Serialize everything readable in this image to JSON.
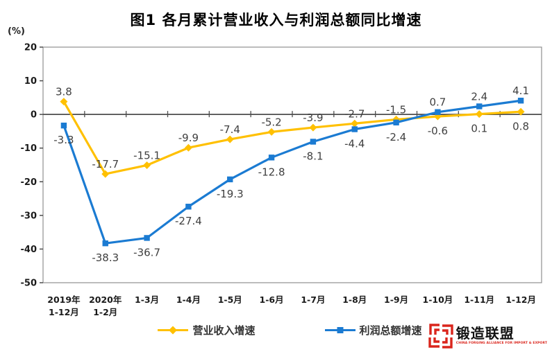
{
  "chart": {
    "title": "图1  各月累计营业收入与利润总额同比增速",
    "unit_label": "(%)"
  },
  "chart_data": {
    "type": "line",
    "title": "图1 各月累计营业收入与利润总额同比增速",
    "ylabel": "(%)",
    "xlabel": "",
    "categories": [
      "2019年1-12月",
      "2020年1-2月",
      "1-3月",
      "1-4月",
      "1-5月",
      "1-6月",
      "1-7月",
      "1-8月",
      "1-9月",
      "1-10月",
      "1-11月",
      "1-12月"
    ],
    "category_labels": [
      [
        "2019年",
        "1-12月"
      ],
      [
        "2020年",
        "1-2月"
      ],
      [
        "1-3月"
      ],
      [
        "1-4月"
      ],
      [
        "1-5月"
      ],
      [
        "1-6月"
      ],
      [
        "1-7月"
      ],
      [
        "1-8月"
      ],
      [
        "1-9月"
      ],
      [
        "1-10月"
      ],
      [
        "1-11月"
      ],
      [
        "1-12月"
      ]
    ],
    "series": [
      {
        "name": "营业收入增速",
        "color": "#FFC000",
        "marker": "diamond",
        "values": [
          3.8,
          -17.7,
          -15.1,
          -9.9,
          -7.4,
          -5.2,
          -3.9,
          -2.7,
          -1.5,
          -0.6,
          0.1,
          0.8
        ],
        "label_pos": [
          "above",
          "above",
          "above",
          "above",
          "above",
          "above",
          "above",
          "above",
          "above",
          "below",
          "below",
          "below"
        ]
      },
      {
        "name": "利润总额增速",
        "color": "#1B7BD2",
        "marker": "square",
        "values": [
          -3.3,
          -38.3,
          -36.7,
          -27.4,
          -19.3,
          -12.8,
          -8.1,
          -4.4,
          -2.4,
          0.7,
          2.4,
          4.1
        ],
        "label_pos": [
          "below",
          "below",
          "below",
          "below",
          "below",
          "below",
          "below",
          "below",
          "below",
          "above",
          "above",
          "above"
        ]
      }
    ],
    "ylim": [
      -50,
      20
    ],
    "yticks": [
      20,
      10,
      0,
      -10,
      -20,
      -30,
      -40,
      -50
    ],
    "grid": false,
    "legend_position": "bottom",
    "colors": {
      "axis": "#4d4d4d",
      "frame": "#8f8f8f",
      "data_label": "#3f3f3f",
      "tick_label": "#1a1a1a"
    }
  },
  "legend": {
    "items": [
      {
        "label": "营业收入增速",
        "color": "#FFC000",
        "marker": "diamond"
      },
      {
        "label": "利润总额增速",
        "color": "#1B7BD2",
        "marker": "square"
      }
    ]
  },
  "logo": {
    "title": "锻造联盟",
    "subtitle": "CHINA FORGING ALLIANCE FOR IMPORT & EXPORT",
    "color": "#DA251C"
  }
}
